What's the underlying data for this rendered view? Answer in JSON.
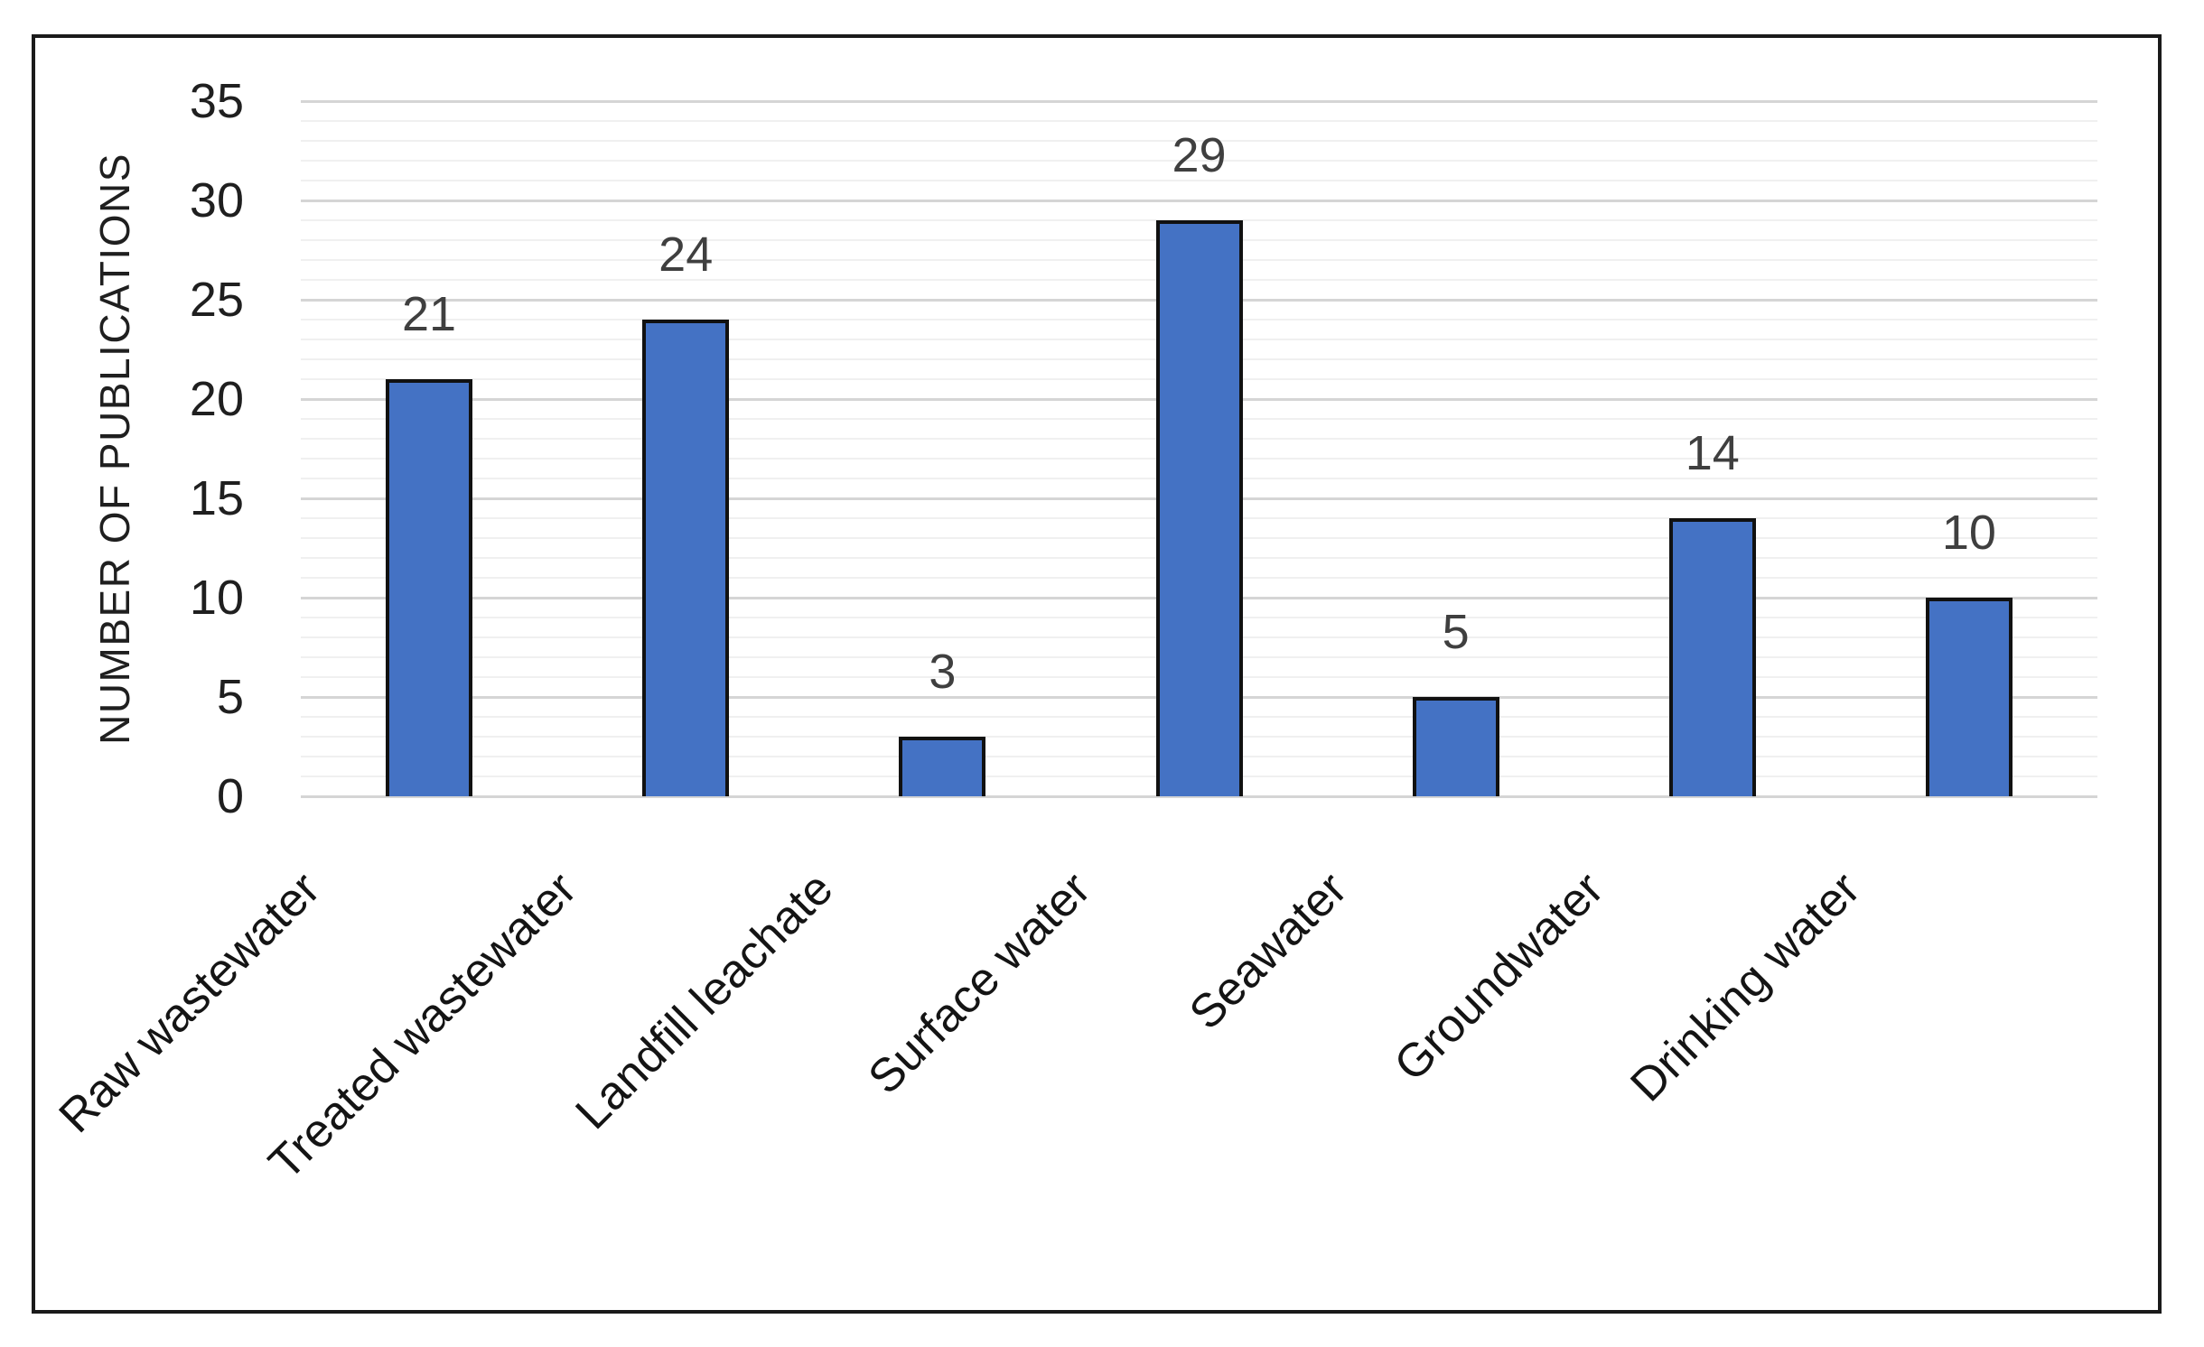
{
  "chart_data": {
    "type": "bar",
    "title": "",
    "xlabel": "",
    "ylabel": "NUMBER OF PUBLICATIONS",
    "categories": [
      "Raw wastewater",
      "Treated wastewater",
      "Landfill leachate",
      "Surface water",
      "Seawater",
      "Groundwater",
      "Drinking water"
    ],
    "values": [
      21,
      24,
      3,
      29,
      5,
      14,
      10
    ],
    "data_labels": [
      "21",
      "24",
      "3",
      "29",
      "5",
      "14",
      "10"
    ],
    "ylim": [
      0,
      35
    ],
    "ytick_step": 5,
    "ytick_labels": [
      "0",
      "5",
      "10",
      "15",
      "20",
      "25",
      "30",
      "35"
    ],
    "minor_grid_step": 1,
    "grid": "horizontal lines: major every 5 units (darker), minor every 1 unit (lighter)",
    "legend_position": "none",
    "colors": {
      "bar_fill": "#4472C4",
      "bar_border": "#111111",
      "major_gridline": "#D5D5D5",
      "minor_gridline": "#F0F0F0",
      "tick_label": "#1F1F1F",
      "value_label": "#3F3F3F",
      "axis_title": "#1F1F1F",
      "chart_border": "#1A1A1A",
      "background": "#FFFFFF"
    }
  }
}
